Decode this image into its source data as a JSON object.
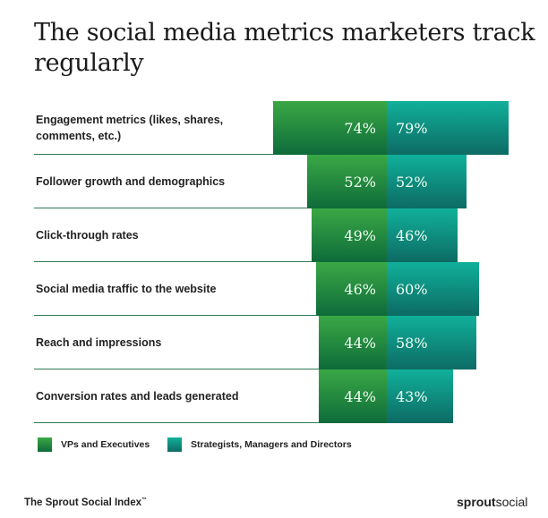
{
  "chart_data": {
    "type": "bar",
    "orientation": "horizontal-diverging",
    "title": "The social media metrics marketers track regularly",
    "categories": [
      "Engagement metrics (likes, shares, comments, etc.)",
      "Follower growth and demographics",
      "Click-through rates",
      "Social media traffic to the website",
      "Reach and impressions",
      "Conversion rates and leads generated"
    ],
    "series": [
      {
        "name": "VPs and Executives",
        "values": [
          74,
          52,
          49,
          46,
          44,
          44
        ],
        "color": "#2a8f42"
      },
      {
        "name": "Strategists, Managers and Directors",
        "values": [
          79,
          52,
          46,
          60,
          58,
          43
        ],
        "color": "#0f9a88"
      }
    ],
    "unit": "%",
    "legend_position": "bottom-left",
    "grid": false
  },
  "footer": {
    "source": "The Sprout Social Index",
    "tm": "™",
    "logo_bold": "sprout",
    "logo_light": "social"
  }
}
